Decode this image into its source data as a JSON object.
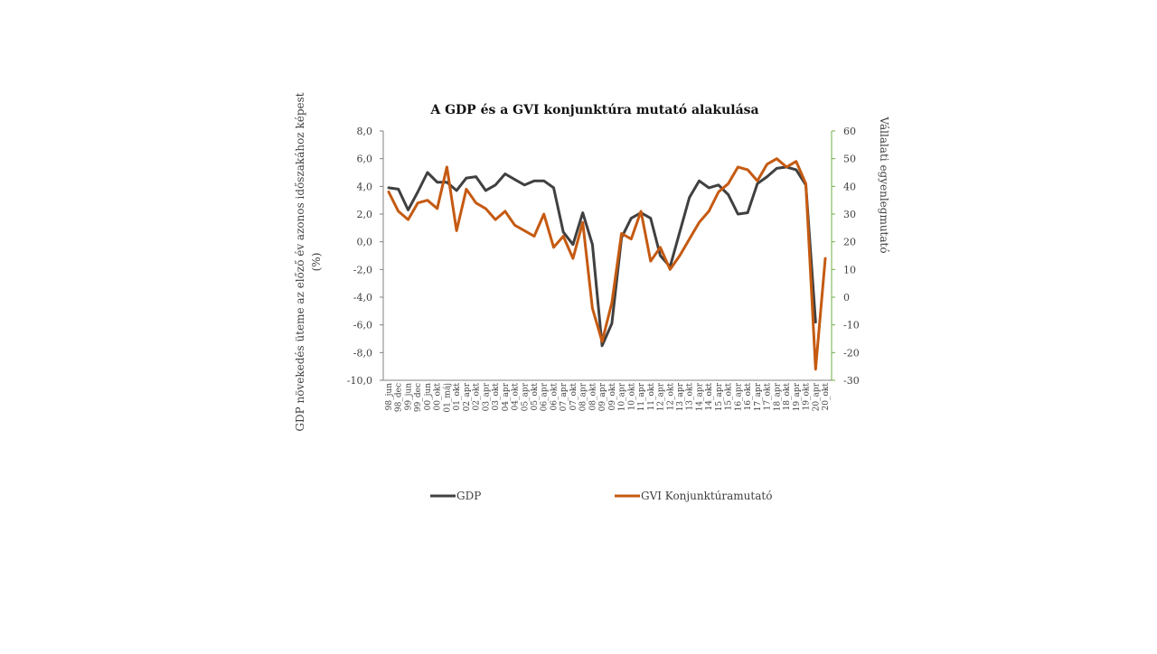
{
  "chart_data": {
    "type": "line",
    "title": "A GDP és a GVI konjunktúra mutató alakulása",
    "ylabel_left": [
      "GDP növekedés üteme az előző év azonos időszakához képest",
      "(%)"
    ],
    "ylabel_right": "Vállalati egyenlegmutató",
    "ylim_left": [
      -10,
      8
    ],
    "ylim_right": [
      -30,
      60
    ],
    "yticks_left": [
      "8,0",
      "6,0",
      "4,0",
      "2,0",
      "0,0",
      "-2,0",
      "-4,0",
      "-6,0",
      "-8,0",
      "-10,0"
    ],
    "yticks_right": [
      "60",
      "50",
      "40",
      "30",
      "20",
      "10",
      "0",
      "-10",
      "-20",
      "-30"
    ],
    "grid": false,
    "legend_position": "bottom",
    "categories": [
      "98_jun",
      "98_dec",
      "99_jun",
      "99_dec",
      "00_jun",
      "00_okt",
      "01_máj",
      "01_okt",
      "02_apr",
      "02_okt",
      "03_apr",
      "03_okt",
      "04_apr",
      "04_okt",
      "05_apr",
      "05_okt",
      "06_apr",
      "06_okt",
      "07_apr",
      "07_okt",
      "08_apr",
      "08_okt",
      "09_apr",
      "09_okt",
      "10_apr",
      "10_okt",
      "11_apr",
      "11_okt",
      "12_apr",
      "12_okt",
      "13_apr",
      "13_okt",
      "14_apr",
      "14_okt",
      "15_apr",
      "15_okt",
      "16_apr",
      "16_okt",
      "17_apr",
      "17_okt",
      "18_apr",
      "18_okt",
      "19_apr",
      "19_okt",
      "20_apr",
      "20_okt"
    ],
    "series": [
      {
        "name": "GDP",
        "axis": "left",
        "color": "#404040",
        "values": [
          3.9,
          3.8,
          2.3,
          3.6,
          5.0,
          4.3,
          4.3,
          3.7,
          4.6,
          4.7,
          3.7,
          4.1,
          4.9,
          4.5,
          4.1,
          4.4,
          4.4,
          3.9,
          0.7,
          -0.2,
          2.1,
          -0.2,
          -7.5,
          -5.9,
          0.3,
          1.7,
          2.1,
          1.7,
          -1.0,
          -1.8,
          0.7,
          3.2,
          4.4,
          3.9,
          4.1,
          3.4,
          2.0,
          2.1,
          4.2,
          4.7,
          5.3,
          5.4,
          5.2,
          4.1,
          -5.8,
          null
        ]
      },
      {
        "name": "GVI Konjunktúramutató",
        "axis": "right",
        "color": "#C55A11",
        "values": [
          38,
          31,
          28,
          34,
          35,
          32,
          47,
          24,
          39,
          34,
          32,
          28,
          31,
          26,
          24,
          22,
          30,
          18,
          22,
          14,
          27,
          -4,
          -16,
          -2,
          23,
          21,
          31,
          13,
          18,
          10,
          15,
          21,
          27,
          31,
          38,
          41,
          47,
          46,
          42,
          48,
          50,
          47,
          49,
          41,
          -26,
          14
        ]
      }
    ]
  }
}
